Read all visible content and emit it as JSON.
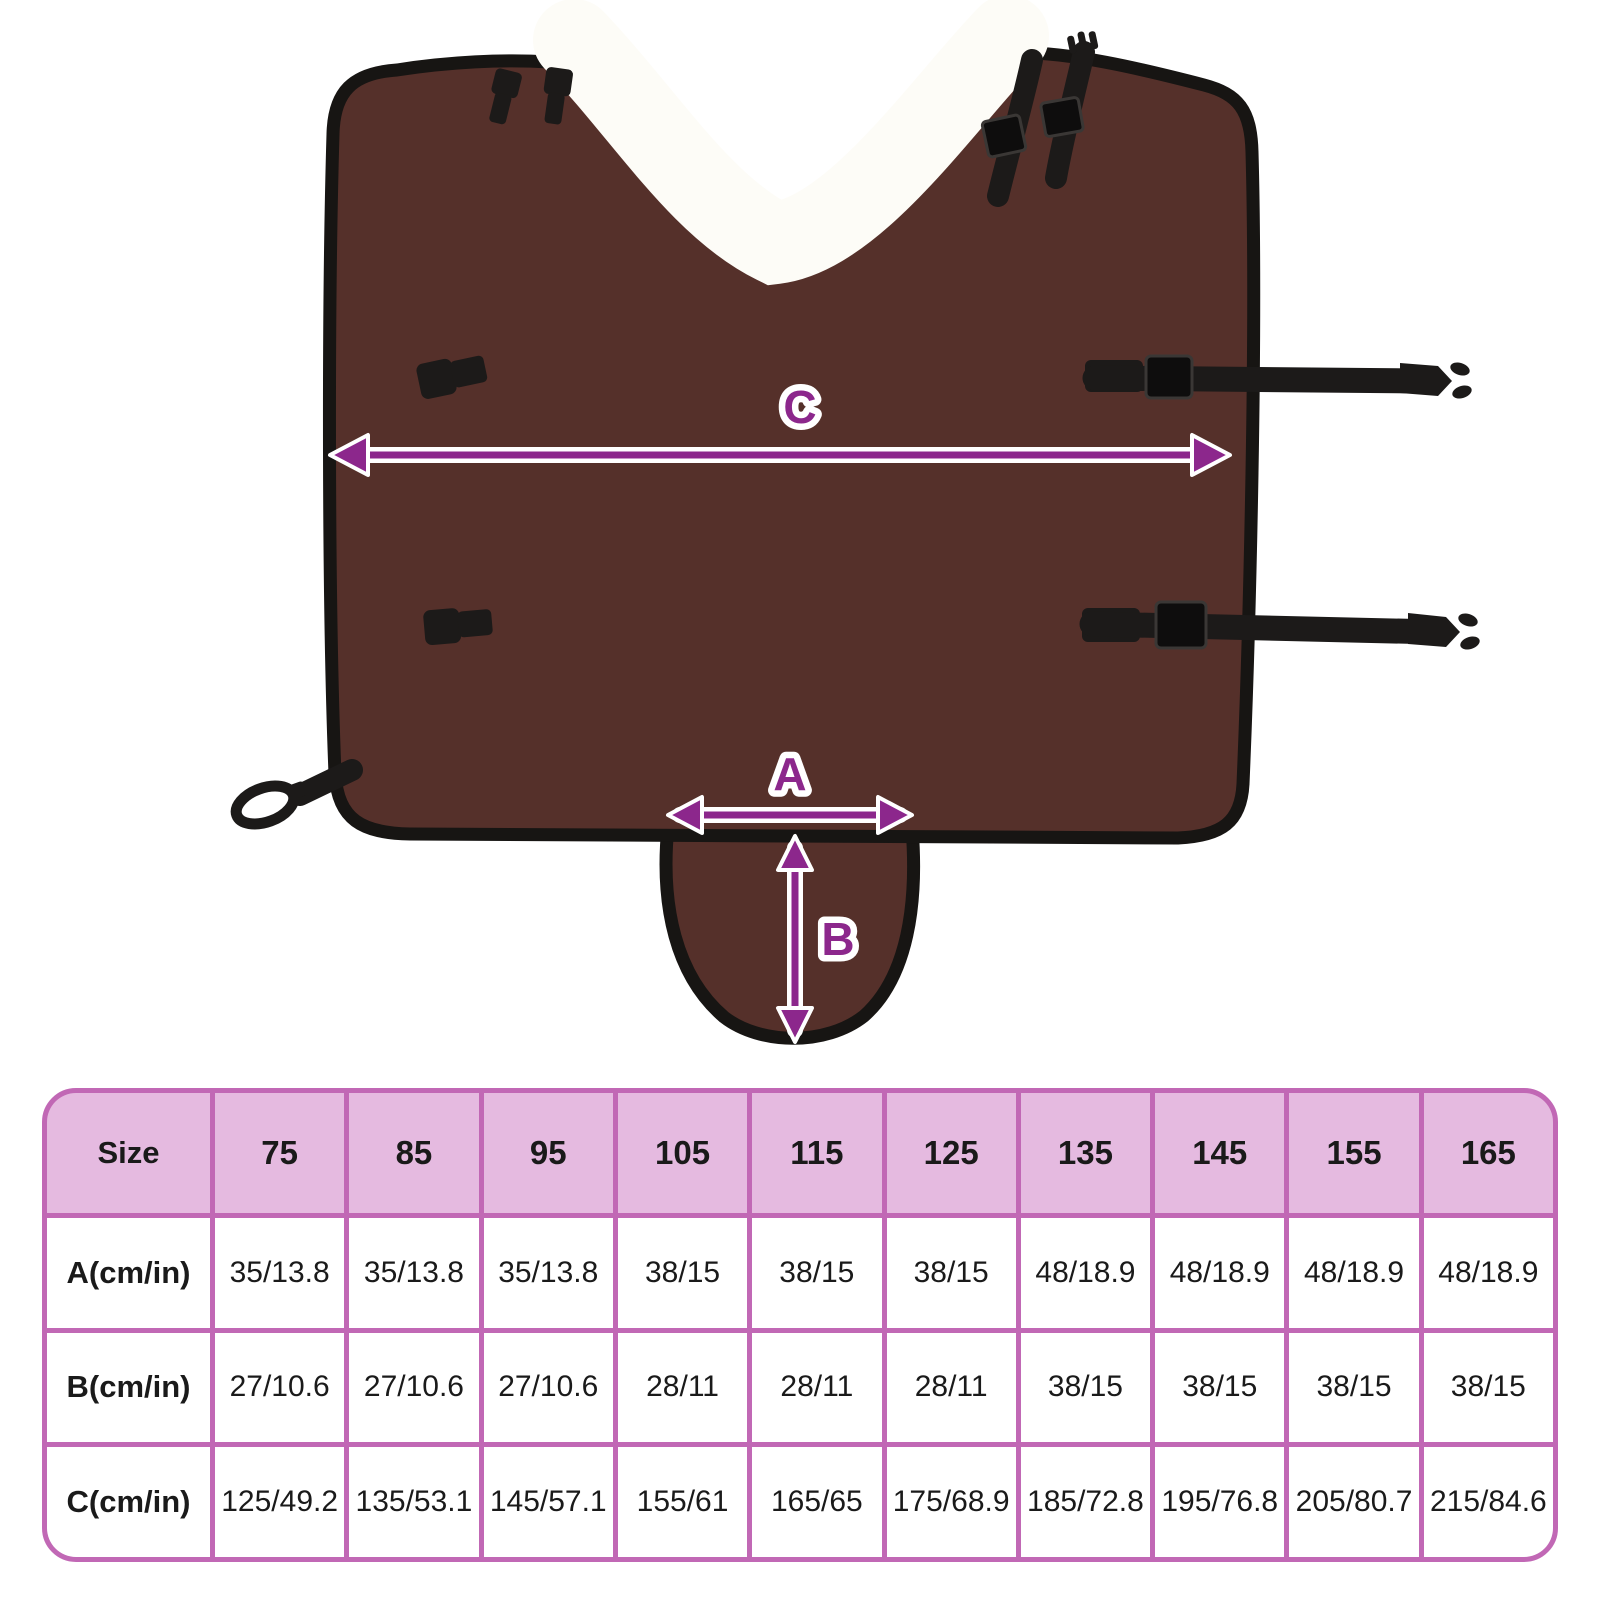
{
  "diagram": {
    "labels": {
      "a": "A",
      "b": "B",
      "c": "C"
    },
    "description": "Horse blanket with fleece collar, straps and tail flap, annotated with measurements A (bottom width), B (tail flap height) and C (total width)"
  },
  "colors": {
    "brown": "#55302a",
    "trim": "#171513",
    "fleece": "#fdfcf7",
    "purple": "#8c278c",
    "tableHeaderBg": "#e5bae0",
    "tableGrid": "#c168b5",
    "tableCellBg": "#ffffff",
    "tableText": "#1a1a1a"
  },
  "table": {
    "header": [
      "Size",
      "75",
      "85",
      "95",
      "105",
      "115",
      "125",
      "135",
      "145",
      "155",
      "165"
    ],
    "rows": [
      {
        "label": "A(cm/in)",
        "values": [
          "35/13.8",
          "35/13.8",
          "35/13.8",
          "38/15",
          "38/15",
          "38/15",
          "48/18.9",
          "48/18.9",
          "48/18.9",
          "48/18.9"
        ]
      },
      {
        "label": "B(cm/in)",
        "values": [
          "27/10.6",
          "27/10.6",
          "27/10.6",
          "28/11",
          "28/11",
          "28/11",
          "38/15",
          "38/15",
          "38/15",
          "38/15"
        ]
      },
      {
        "label": "C(cm/in)",
        "values": [
          "125/49.2",
          "135/53.1",
          "145/57.1",
          "155/61",
          "165/65",
          "175/68.9",
          "185/72.8",
          "195/76.8",
          "205/80.7",
          "215/84.6"
        ]
      }
    ]
  },
  "chart_data": {
    "type": "table",
    "title": "Blanket size chart",
    "columns": [
      "Size",
      "75",
      "85",
      "95",
      "105",
      "115",
      "125",
      "135",
      "145",
      "155",
      "165"
    ],
    "rows": [
      [
        "A(cm/in)",
        "35/13.8",
        "35/13.8",
        "35/13.8",
        "38/15",
        "38/15",
        "38/15",
        "48/18.9",
        "48/18.9",
        "48/18.9",
        "48/18.9"
      ],
      [
        "B(cm/in)",
        "27/10.6",
        "27/10.6",
        "27/10.6",
        "28/11",
        "28/11",
        "28/11",
        "38/15",
        "38/15",
        "38/15",
        "38/15"
      ],
      [
        "C(cm/in)",
        "125/49.2",
        "135/53.1",
        "145/57.1",
        "155/61",
        "165/65",
        "175/68.9",
        "185/72.8",
        "195/76.8",
        "205/80.7",
        "215/84.6"
      ]
    ]
  }
}
